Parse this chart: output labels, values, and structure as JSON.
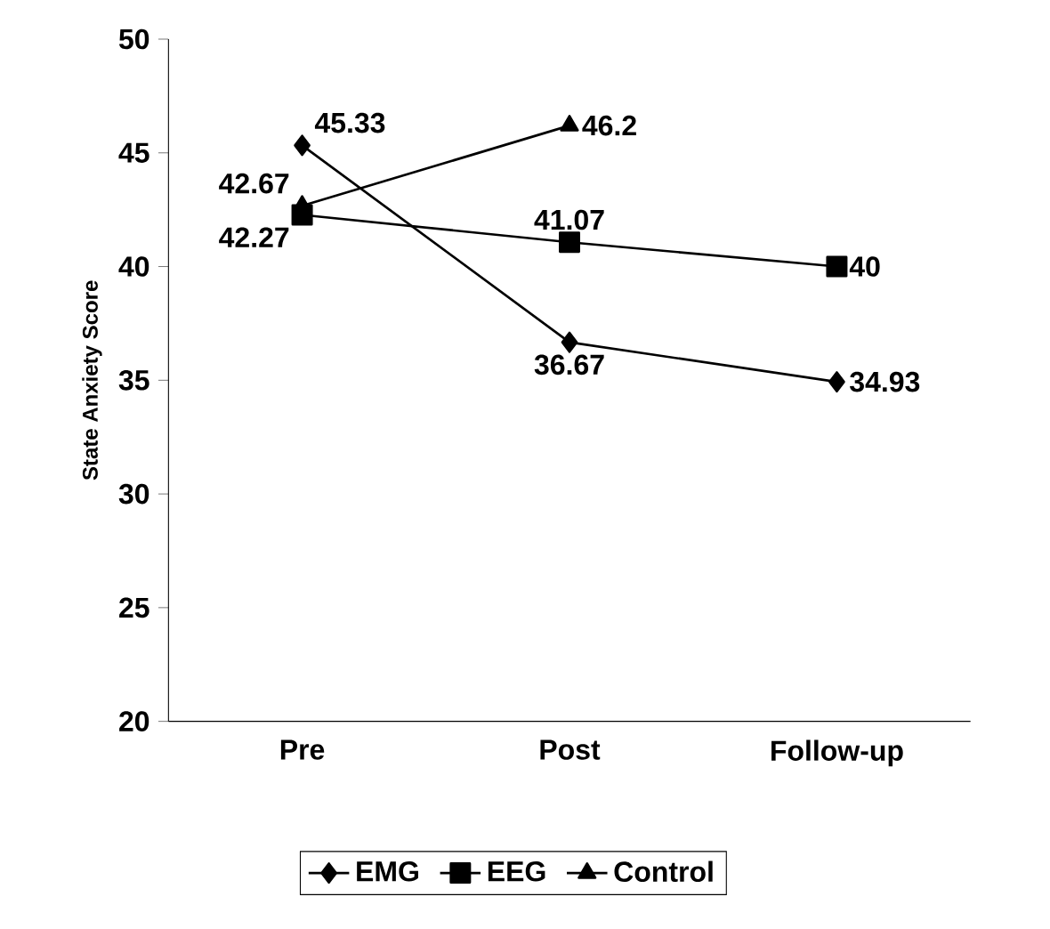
{
  "chart_data": {
    "type": "line",
    "ylabel": "State Anxiety Score",
    "categories": [
      "Pre",
      "Post",
      "Follow-up"
    ],
    "series": [
      {
        "name": "EMG",
        "color": "#000000",
        "marker": "diamond",
        "values": [
          45.33,
          36.67,
          34.93
        ]
      },
      {
        "name": "EEG",
        "color": "#000000",
        "marker": "square",
        "values": [
          42.27,
          41.07,
          40
        ]
      },
      {
        "name": "Control",
        "color": "#000000",
        "marker": "triangle",
        "values": [
          42.67,
          46.2,
          null
        ]
      }
    ],
    "ylim": [
      20,
      50
    ],
    "yticks": [
      20,
      25,
      30,
      35,
      40,
      45,
      50
    ],
    "data_labels": true,
    "legend": "bottom",
    "grid": false,
    "line_style": "solid"
  }
}
